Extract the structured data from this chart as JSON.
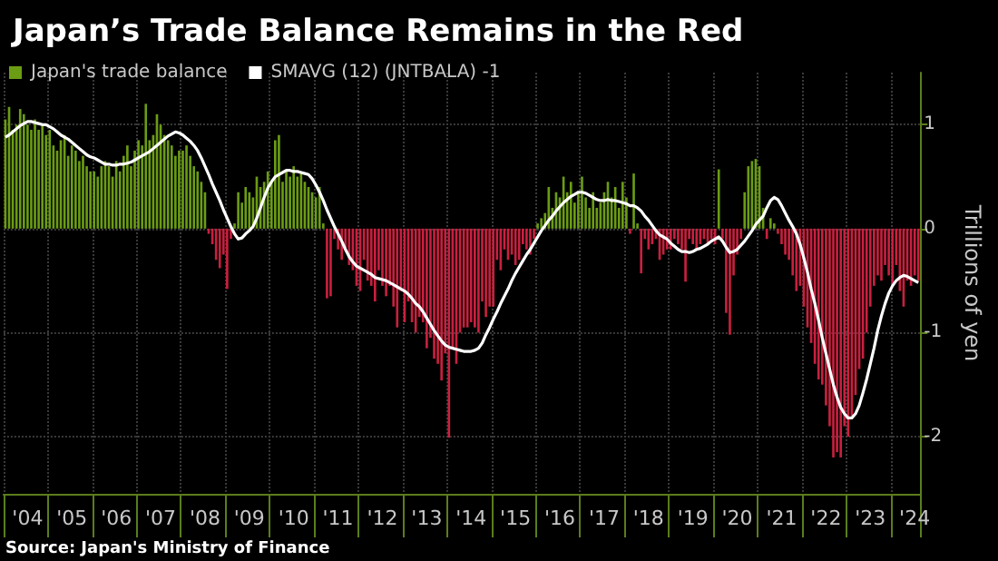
{
  "chart_data": {
    "type": "bar",
    "title": "Japan’s Trade Balance Remains in the Red",
    "ylabel": "Trillions of yen",
    "annotations": [
      "Source: Japan's Ministry of Finance"
    ],
    "categories": [
      null,
      null,
      null,
      null,
      null,
      null,
      "'04",
      null,
      null,
      null,
      null,
      null,
      null,
      null,
      null,
      null,
      null,
      null,
      "'05",
      null,
      null,
      null,
      null,
      null,
      null,
      null,
      null,
      null,
      null,
      null,
      "'06",
      null,
      null,
      null,
      null,
      null,
      null,
      null,
      null,
      null,
      null,
      null,
      "'07",
      null,
      null,
      null,
      null,
      null,
      null,
      null,
      null,
      null,
      null,
      null,
      "'08",
      null,
      null,
      null,
      null,
      null,
      null,
      null,
      null,
      null,
      null,
      null,
      "'09",
      null,
      null,
      null,
      null,
      null,
      null,
      null,
      null,
      null,
      null,
      null,
      "'10",
      null,
      null,
      null,
      null,
      null,
      null,
      null,
      null,
      null,
      null,
      null,
      "'11",
      null,
      null,
      null,
      null,
      null,
      null,
      null,
      null,
      null,
      null,
      null,
      "'12",
      null,
      null,
      null,
      null,
      null,
      null,
      null,
      null,
      null,
      null,
      null,
      "'13",
      null,
      null,
      null,
      null,
      null,
      null,
      null,
      null,
      null,
      null,
      null,
      "'14",
      null,
      null,
      null,
      null,
      null,
      null,
      null,
      null,
      null,
      null,
      null,
      "'15",
      null,
      null,
      null,
      null,
      null,
      null,
      null,
      null,
      null,
      null,
      null,
      "'16",
      null,
      null,
      null,
      null,
      null,
      null,
      null,
      null,
      null,
      null,
      null,
      "'17",
      null,
      null,
      null,
      null,
      null,
      null,
      null,
      null,
      null,
      null,
      null,
      "'18",
      null,
      null,
      null,
      null,
      null,
      null,
      null,
      null,
      null,
      null,
      null,
      "'19",
      null,
      null,
      null,
      null,
      null,
      null,
      null,
      null,
      null,
      null,
      null,
      "'20",
      null,
      null,
      null,
      null,
      null,
      null,
      null,
      null,
      null,
      null,
      null,
      "'21",
      null,
      null,
      null,
      null,
      null,
      null,
      null,
      null,
      null,
      null,
      null,
      "'22",
      null,
      null,
      null,
      null,
      null,
      null,
      null,
      null,
      null,
      null,
      null,
      "'23",
      null,
      null,
      null,
      null,
      null,
      null,
      null,
      null,
      null,
      null,
      null,
      "'24",
      null
    ],
    "series": [
      {
        "name": "Japan's trade balance",
        "color": "#6b9c14",
        "values": [
          1.05,
          1.17,
          0.95,
          1.0,
          1.15,
          1.1,
          1.0,
          0.95,
          1.05,
          0.95,
          1.0,
          0.9,
          0.95,
          0.8,
          0.75,
          0.85,
          0.9,
          0.7,
          0.8,
          0.75,
          0.65,
          0.7,
          0.6,
          0.55,
          0.55,
          0.5,
          0.6,
          0.65,
          0.6,
          0.5,
          0.65,
          0.55,
          0.7,
          0.8,
          0.6,
          0.75,
          0.85,
          0.8,
          1.2,
          0.85,
          0.9,
          1.1,
          1.0,
          0.9,
          0.85,
          0.8,
          0.7,
          0.75,
          0.75,
          0.8,
          0.7,
          0.6,
          0.55,
          0.45,
          0.35,
          -0.05,
          -0.15,
          -0.3,
          -0.38,
          -0.25,
          -0.58,
          -0.1,
          0.05,
          0.35,
          0.25,
          0.4,
          0.35,
          0.3,
          0.5,
          0.4,
          0.45,
          0.55,
          0.45,
          0.85,
          0.9,
          0.45,
          0.55,
          0.5,
          0.6,
          0.5,
          0.55,
          0.45,
          0.4,
          0.35,
          0.3,
          0.4,
          0.05,
          -0.67,
          -0.65,
          -0.1,
          -0.2,
          -0.3,
          -0.2,
          -0.35,
          -0.4,
          -0.55,
          -0.6,
          -0.3,
          -0.5,
          -0.55,
          -0.7,
          -0.4,
          -0.55,
          -0.65,
          -0.55,
          -0.75,
          -0.95,
          -0.6,
          -0.9,
          -0.7,
          -0.9,
          -1.0,
          -0.85,
          -0.9,
          -1.15,
          -1.05,
          -1.25,
          -1.3,
          -1.46,
          -1.2,
          -2.01,
          -1.15,
          -1.3,
          -1.0,
          -0.95,
          -0.95,
          -0.9,
          -0.95,
          -1.0,
          -0.7,
          -0.85,
          -0.75,
          -0.75,
          -0.3,
          -0.4,
          -0.2,
          -0.3,
          -0.25,
          -0.35,
          -0.3,
          -0.15,
          -0.2,
          -0.25,
          -0.1,
          0.05,
          0.1,
          0.15,
          0.4,
          0.2,
          0.35,
          0.3,
          0.5,
          0.35,
          0.45,
          0.25,
          0.35,
          0.5,
          0.3,
          0.2,
          0.35,
          0.2,
          0.25,
          0.35,
          0.45,
          0.3,
          0.4,
          0.2,
          0.45,
          0.3,
          -0.05,
          0.53,
          0.05,
          -0.43,
          -0.1,
          -0.2,
          -0.15,
          -0.1,
          -0.3,
          -0.25,
          -0.2,
          -0.2,
          -0.1,
          -0.15,
          -0.2,
          -0.51,
          -0.1,
          -0.15,
          -0.2,
          -0.15,
          -0.1,
          -0.15,
          -0.1,
          -0.15,
          0.57,
          -0.1,
          -0.81,
          -1.02,
          -0.45,
          -0.25,
          -0.1,
          0.35,
          0.6,
          0.65,
          0.67,
          0.6,
          0.2,
          -0.1,
          0.1,
          0.05,
          -0.05,
          -0.15,
          -0.25,
          -0.3,
          -0.45,
          -0.6,
          -0.55,
          -0.75,
          -0.95,
          -1.1,
          -1.3,
          -1.45,
          -1.5,
          -1.7,
          -1.9,
          -2.2,
          -2.15,
          -2.2,
          -1.9,
          -2.0,
          -1.8,
          -1.6,
          -1.35,
          -1.25,
          -1.0,
          -0.75,
          -0.55,
          -0.45,
          -0.5,
          -0.35,
          -0.45,
          -0.55,
          -0.35,
          -0.6,
          -0.75,
          -0.5,
          -0.55,
          -0.45,
          -0.5
        ],
        "colors": [
          "#6b9c14",
          "#6b9c14",
          "#6b9c14",
          "#6b9c14",
          "#6b9c14",
          "#6b9c14",
          "#6b9c14",
          "#6b9c14",
          "#6b9c14",
          "#6b9c14",
          "#6b9c14",
          "#6b9c14",
          "#6b9c14",
          "#6b9c14",
          "#6b9c14",
          "#6b9c14",
          "#6b9c14",
          "#6b9c14",
          "#6b9c14",
          "#6b9c14",
          "#6b9c14",
          "#6b9c14",
          "#6b9c14",
          "#6b9c14",
          "#6b9c14",
          "#6b9c14",
          "#6b9c14",
          "#6b9c14",
          "#6b9c14",
          "#6b9c14",
          "#6b9c14",
          "#6b9c14",
          "#6b9c14",
          "#6b9c14",
          "#6b9c14",
          "#6b9c14",
          "#6b9c14",
          "#6b9c14",
          "#6b9c14",
          "#6b9c14",
          "#6b9c14",
          "#6b9c14",
          "#6b9c14",
          "#6b9c14",
          "#6b9c14",
          "#6b9c14",
          "#6b9c14",
          "#6b9c14",
          "#6b9c14",
          "#6b9c14",
          "#6b9c14",
          "#6b9c14",
          "#6b9c14",
          "#6b9c14",
          "#6b9c14",
          "#c8203f",
          "#c8203f",
          "#c8203f",
          "#c8203f",
          "#c8203f",
          "#c8203f",
          "#c8203f",
          "#6b9c14",
          "#6b9c14",
          "#6b9c14",
          "#6b9c14",
          "#6b9c14",
          "#6b9c14",
          "#6b9c14",
          "#6b9c14",
          "#6b9c14",
          "#6b9c14",
          "#6b9c14",
          "#6b9c14",
          "#6b9c14",
          "#6b9c14",
          "#6b9c14",
          "#6b9c14",
          "#6b9c14",
          "#6b9c14",
          "#6b9c14",
          "#6b9c14",
          "#6b9c14",
          "#6b9c14",
          "#6b9c14",
          "#6b9c14",
          "#6b9c14",
          "#c8203f",
          "#c8203f",
          "#c8203f",
          "#c8203f",
          "#c8203f",
          "#c8203f",
          "#c8203f",
          "#c8203f",
          "#c8203f",
          "#c8203f",
          "#c8203f",
          "#c8203f",
          "#c8203f",
          "#c8203f",
          "#c8203f",
          "#c8203f",
          "#c8203f",
          "#c8203f",
          "#c8203f",
          "#c8203f",
          "#c8203f",
          "#c8203f",
          "#c8203f",
          "#c8203f",
          "#c8203f",
          "#c8203f",
          "#c8203f",
          "#c8203f",
          "#c8203f",
          "#c8203f",
          "#c8203f",
          "#c8203f",
          "#c8203f",
          "#c8203f",
          "#c8203f",
          "#c8203f",
          "#c8203f",
          "#c8203f",
          "#c8203f",
          "#c8203f",
          "#c8203f",
          "#c8203f",
          "#c8203f",
          "#c8203f",
          "#c8203f",
          "#c8203f",
          "#c8203f",
          "#c8203f",
          "#c8203f",
          "#c8203f",
          "#c8203f",
          "#c8203f",
          "#c8203f",
          "#c8203f",
          "#c8203f",
          "#c8203f",
          "#c8203f",
          "#6b9c14",
          "#6b9c14",
          "#6b9c14",
          "#6b9c14",
          "#6b9c14",
          "#6b9c14",
          "#6b9c14",
          "#6b9c14",
          "#6b9c14",
          "#6b9c14",
          "#6b9c14",
          "#6b9c14",
          "#6b9c14",
          "#6b9c14",
          "#6b9c14",
          "#6b9c14",
          "#6b9c14",
          "#6b9c14",
          "#6b9c14",
          "#6b9c14",
          "#6b9c14",
          "#6b9c14",
          "#6b9c14",
          "#6b9c14",
          "#6b9c14",
          "#c8203f",
          "#6b9c14",
          "#6b9c14",
          "#c8203f",
          "#c8203f",
          "#c8203f",
          "#c8203f",
          "#c8203f",
          "#c8203f",
          "#c8203f",
          "#c8203f",
          "#c8203f",
          "#c8203f",
          "#c8203f",
          "#c8203f",
          "#c8203f",
          "#c8203f",
          "#c8203f",
          "#c8203f",
          "#c8203f",
          "#c8203f",
          "#c8203f",
          "#c8203f",
          "#c8203f",
          "#6b9c14",
          "#c8203f",
          "#c8203f",
          "#c8203f",
          "#c8203f",
          "#c8203f",
          "#c8203f",
          "#6b9c14",
          "#6b9c14",
          "#6b9c14",
          "#6b9c14",
          "#6b9c14",
          "#6b9c14",
          "#c8203f",
          "#6b9c14",
          "#6b9c14",
          "#c8203f",
          "#c8203f",
          "#c8203f",
          "#c8203f",
          "#c8203f",
          "#c8203f",
          "#c8203f",
          "#c8203f",
          "#c8203f",
          "#c8203f",
          "#c8203f",
          "#c8203f",
          "#c8203f",
          "#c8203f",
          "#c8203f",
          "#c8203f",
          "#c8203f",
          "#c8203f",
          "#c8203f",
          "#c8203f",
          "#c8203f",
          "#c8203f",
          "#c8203f",
          "#c8203f",
          "#c8203f",
          "#c8203f",
          "#c8203f",
          "#c8203f",
          "#c8203f",
          "#c8203f",
          "#c8203f",
          "#c8203f",
          "#c8203f",
          "#c8203f",
          "#c8203f",
          "#c8203f",
          "#c8203f",
          "#c8203f",
          "#c8203f"
        ]
      },
      {
        "name": "SMAVG (12) (JNTBALA) -1",
        "type": "line",
        "color": "#ffffff",
        "values": [
          0.88,
          0.9,
          0.93,
          0.96,
          0.99,
          1.01,
          1.03,
          1.03,
          1.02,
          1.01,
          1.0,
          1.0,
          0.98,
          0.96,
          0.93,
          0.9,
          0.88,
          0.86,
          0.83,
          0.8,
          0.77,
          0.74,
          0.71,
          0.69,
          0.68,
          0.66,
          0.64,
          0.62,
          0.62,
          0.61,
          0.61,
          0.62,
          0.62,
          0.63,
          0.64,
          0.66,
          0.68,
          0.7,
          0.72,
          0.74,
          0.77,
          0.8,
          0.83,
          0.86,
          0.89,
          0.91,
          0.93,
          0.92,
          0.9,
          0.87,
          0.84,
          0.8,
          0.75,
          0.68,
          0.6,
          0.52,
          0.43,
          0.35,
          0.27,
          0.18,
          0.1,
          0.02,
          -0.05,
          -0.1,
          -0.09,
          -0.05,
          -0.02,
          0.02,
          0.1,
          0.2,
          0.3,
          0.39,
          0.45,
          0.5,
          0.52,
          0.54,
          0.56,
          0.56,
          0.55,
          0.55,
          0.54,
          0.53,
          0.52,
          0.48,
          0.42,
          0.35,
          0.27,
          0.18,
          0.1,
          0.02,
          -0.05,
          -0.12,
          -0.2,
          -0.27,
          -0.32,
          -0.36,
          -0.38,
          -0.4,
          -0.42,
          -0.44,
          -0.47,
          -0.48,
          -0.49,
          -0.5,
          -0.52,
          -0.54,
          -0.56,
          -0.58,
          -0.6,
          -0.63,
          -0.67,
          -0.72,
          -0.75,
          -0.8,
          -0.86,
          -0.92,
          -0.98,
          -1.03,
          -1.08,
          -1.12,
          -1.14,
          -1.15,
          -1.16,
          -1.17,
          -1.18,
          -1.18,
          -1.18,
          -1.17,
          -1.15,
          -1.1,
          -1.02,
          -0.95,
          -0.87,
          -0.8,
          -0.72,
          -0.65,
          -0.58,
          -0.5,
          -0.43,
          -0.37,
          -0.31,
          -0.25,
          -0.2,
          -0.14,
          -0.08,
          -0.02,
          0.03,
          0.08,
          0.12,
          0.17,
          0.21,
          0.25,
          0.28,
          0.31,
          0.33,
          0.35,
          0.35,
          0.34,
          0.32,
          0.3,
          0.28,
          0.27,
          0.27,
          0.28,
          0.27,
          0.27,
          0.26,
          0.25,
          0.24,
          0.22,
          0.22,
          0.2,
          0.17,
          0.12,
          0.08,
          0.03,
          -0.02,
          -0.06,
          -0.08,
          -0.1,
          -0.14,
          -0.17,
          -0.2,
          -0.22,
          -0.22,
          -0.23,
          -0.22,
          -0.2,
          -0.19,
          -0.17,
          -0.15,
          -0.12,
          -0.1,
          -0.08,
          -0.12,
          -0.18,
          -0.23,
          -0.22,
          -0.2,
          -0.16,
          -0.12,
          -0.07,
          -0.02,
          0.04,
          0.08,
          0.12,
          0.2,
          0.27,
          0.3,
          0.28,
          0.22,
          0.15,
          0.08,
          0.02,
          -0.05,
          -0.15,
          -0.28,
          -0.42,
          -0.58,
          -0.72,
          -0.88,
          -1.05,
          -1.2,
          -1.35,
          -1.5,
          -1.62,
          -1.72,
          -1.78,
          -1.82,
          -1.82,
          -1.78,
          -1.7,
          -1.58,
          -1.45,
          -1.3,
          -1.15,
          -0.98,
          -0.84,
          -0.72,
          -0.62,
          -0.55,
          -0.5,
          -0.47,
          -0.45,
          -0.46,
          -0.48,
          -0.5,
          -0.52
        ]
      }
    ],
    "ylim": [
      -2.55,
      1.5
    ],
    "yticks": [
      -2,
      -1,
      0,
      1
    ],
    "grid": true,
    "legend": "top left",
    "marker": "none"
  }
}
